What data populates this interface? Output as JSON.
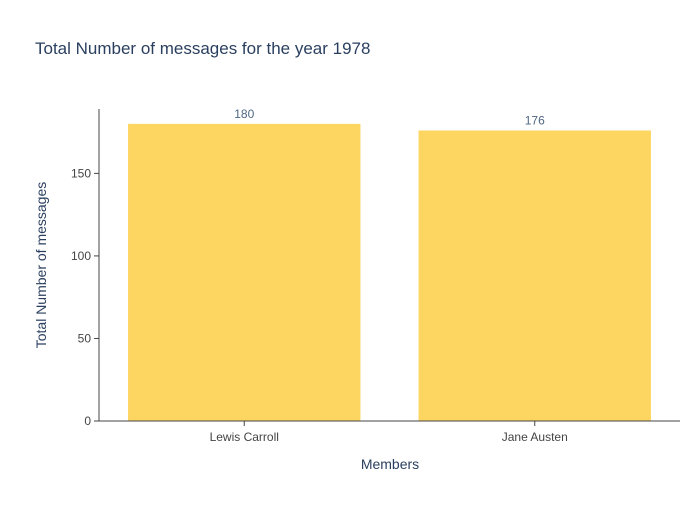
{
  "chart_data": {
    "type": "bar",
    "title": "Total Number of messages for the year 1978",
    "xlabel": "Members",
    "ylabel": "Total Number of messages",
    "categories": [
      "Lewis Carroll",
      "Jane Austen"
    ],
    "values": [
      180,
      176
    ],
    "ylim": [
      0,
      189
    ],
    "yticks": [
      0,
      50,
      100,
      150
    ],
    "grid": false,
    "legend": "none",
    "colors": {
      "bar": "#fdd661",
      "axis": "#2a3f5f",
      "title": "#2a3f5f",
      "tick": "#444444",
      "label": "#506784"
    }
  }
}
